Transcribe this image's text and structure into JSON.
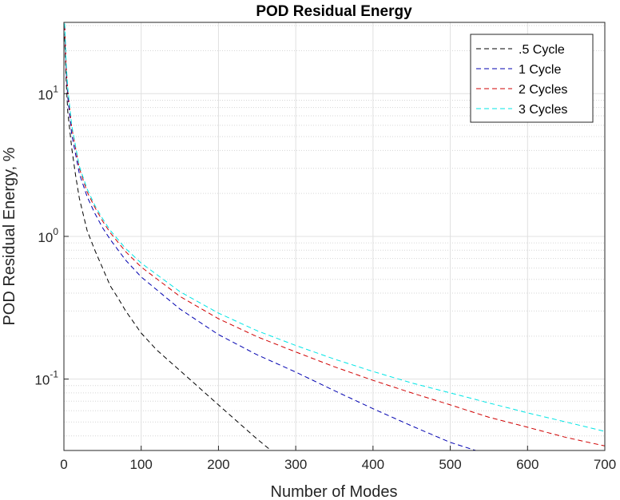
{
  "chart_data": {
    "type": "line",
    "title": "POD Residual Energy",
    "xlabel": "Number of Modes",
    "ylabel": "POD Residual Energy, %",
    "yscale": "log",
    "xlim": [
      0,
      700
    ],
    "ylim": [
      0.0316,
      31.6
    ],
    "grid": true,
    "legend_position": "top-right",
    "x_ticks": [
      0,
      100,
      200,
      300,
      400,
      500,
      600,
      700
    ],
    "y_ticks": [
      {
        "value": 0.1,
        "base": "10",
        "exp": "-1"
      },
      {
        "value": 1,
        "base": "10",
        "exp": "0"
      },
      {
        "value": 10,
        "base": "10",
        "exp": "1"
      }
    ],
    "series": [
      {
        "name": ".5 Cycle",
        "color": "#000000",
        "x": [
          1,
          3,
          5,
          10,
          15,
          20,
          30,
          40,
          50,
          60,
          70,
          80,
          100,
          120,
          150,
          200,
          250,
          268
        ],
        "y": [
          25,
          12,
          7.5,
          4.2,
          2.7,
          1.85,
          1.1,
          0.8,
          0.6,
          0.45,
          0.37,
          0.3,
          0.21,
          0.16,
          0.115,
          0.066,
          0.038,
          0.0316
        ]
      },
      {
        "name": "1 Cycle",
        "color": "#0000b0",
        "x": [
          1,
          3,
          5,
          10,
          20,
          30,
          40,
          50,
          60,
          80,
          100,
          150,
          200,
          250,
          300,
          350,
          400,
          450,
          500,
          533
        ],
        "y": [
          30,
          14,
          9.5,
          5.2,
          2.75,
          1.9,
          1.45,
          1.15,
          0.95,
          0.68,
          0.52,
          0.31,
          0.205,
          0.148,
          0.112,
          0.083,
          0.062,
          0.047,
          0.036,
          0.0316
        ]
      },
      {
        "name": "2 Cycles",
        "color": "#d00000",
        "x": [
          1,
          3,
          5,
          10,
          20,
          30,
          40,
          50,
          60,
          80,
          100,
          150,
          200,
          250,
          300,
          350,
          400,
          450,
          500,
          550,
          600,
          650,
          700
        ],
        "y": [
          30,
          15,
          10.5,
          5.8,
          3.0,
          2.05,
          1.6,
          1.28,
          1.06,
          0.78,
          0.61,
          0.38,
          0.265,
          0.198,
          0.155,
          0.122,
          0.098,
          0.08,
          0.066,
          0.054,
          0.046,
          0.039,
          0.034
        ]
      },
      {
        "name": "3 Cycles",
        "color": "#00e5e5",
        "x": [
          1,
          3,
          5,
          10,
          20,
          30,
          40,
          50,
          60,
          80,
          100,
          150,
          200,
          250,
          300,
          350,
          400,
          450,
          500,
          550,
          600,
          650,
          700
        ],
        "y": [
          31,
          16,
          11,
          6.0,
          3.1,
          2.15,
          1.65,
          1.33,
          1.1,
          0.82,
          0.65,
          0.41,
          0.29,
          0.218,
          0.172,
          0.138,
          0.113,
          0.094,
          0.08,
          0.068,
          0.058,
          0.05,
          0.043
        ]
      }
    ]
  }
}
